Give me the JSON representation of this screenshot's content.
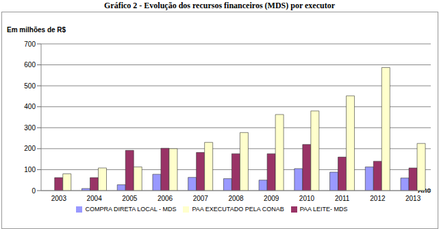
{
  "chart_data": {
    "type": "bar",
    "title": "Gráfico 2 - Evolução dos recursos financeiros (MDS) por executor",
    "y_label": "Em milhões de R$",
    "x_label": "Ano",
    "categories": [
      "2003",
      "2004",
      "2005",
      "2006",
      "2007",
      "2008",
      "2009",
      "2010",
      "2011",
      "2012",
      "2013"
    ],
    "series": [
      {
        "name": "COMPRA DIRETA LOCAL - MDS",
        "color": "#9999FF",
        "values": [
          0,
          10,
          28,
          78,
          63,
          57,
          50,
          105,
          88,
          113,
          60
        ]
      },
      {
        "name": "PAA LEITE- MDS",
        "color": "#993366",
        "values": [
          62,
          62,
          192,
          202,
          182,
          176,
          176,
          220,
          160,
          140,
          108
        ]
      },
      {
        "name": "PAA EXECUTADO PELA CONAB",
        "color": "#FFFFCC",
        "values": [
          80,
          108,
          113,
          200,
          230,
          277,
          363,
          380,
          452,
          587,
          225
        ]
      }
    ],
    "ylim": [
      0,
      700
    ],
    "yticks": [
      0,
      100,
      200,
      300,
      400,
      500,
      600,
      700
    ],
    "grid": true,
    "legend": "bottom"
  }
}
